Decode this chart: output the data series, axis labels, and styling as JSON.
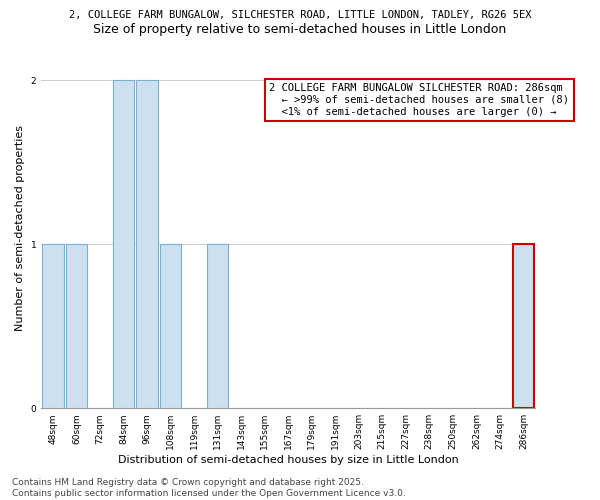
{
  "title_line1": "2, COLLEGE FARM BUNGALOW, SILCHESTER ROAD, LITTLE LONDON, TADLEY, RG26 5EX",
  "title_line2": "Size of property relative to semi-detached houses in Little London",
  "xlabel": "Distribution of semi-detached houses by size in Little London",
  "ylabel": "Number of semi-detached properties",
  "categories": [
    "48sqm",
    "60sqm",
    "72sqm",
    "84sqm",
    "96sqm",
    "108sqm",
    "119sqm",
    "131sqm",
    "143sqm",
    "155sqm",
    "167sqm",
    "179sqm",
    "191sqm",
    "203sqm",
    "215sqm",
    "227sqm",
    "238sqm",
    "250sqm",
    "262sqm",
    "274sqm",
    "286sqm"
  ],
  "values": [
    1,
    1,
    0,
    2,
    2,
    1,
    0,
    1,
    0,
    0,
    0,
    0,
    0,
    0,
    0,
    0,
    0,
    0,
    0,
    0,
    1
  ],
  "bar_color": "#cce0f0",
  "bar_edge_color": "#7ab0d4",
  "highlight_index": 20,
  "highlight_bar_color": "#cce0f0",
  "highlight_bar_edge_color": "#cc0000",
  "annotation_box_text": "2 COLLEGE FARM BUNGALOW SILCHESTER ROAD: 286sqm\n  ← >99% of semi-detached houses are smaller (8)\n  <1% of semi-detached houses are larger (0) →",
  "annotation_box_edge_color": "#cc0000",
  "footer_line1": "Contains HM Land Registry data © Crown copyright and database right 2025.",
  "footer_line2": "Contains public sector information licensed under the Open Government Licence v3.0.",
  "ylim": [
    0,
    2.2
  ],
  "yticks": [
    0,
    1,
    2
  ],
  "background_color": "#ffffff",
  "grid_color": "#cccccc",
  "title_fontsize": 7.5,
  "subtitle_fontsize": 9,
  "axis_label_fontsize": 8,
  "tick_fontsize": 6.5,
  "annotation_fontsize": 7.5,
  "footer_fontsize": 6.5
}
